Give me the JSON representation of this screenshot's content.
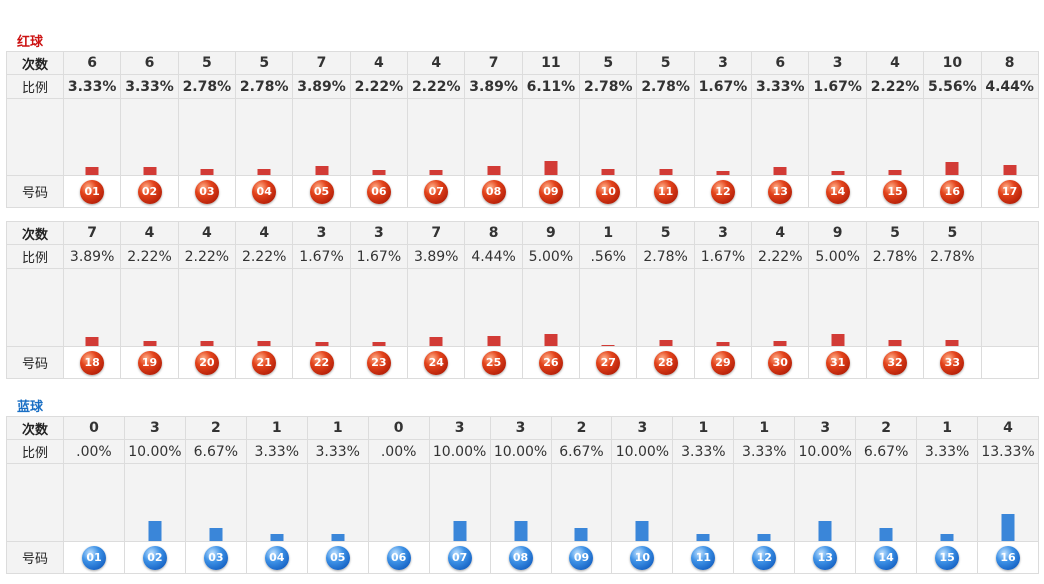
{
  "labels": {
    "count": "次数",
    "ratio": "比例",
    "number": "号码"
  },
  "colors": {
    "red_title": "#cc1111",
    "blue_title": "#1a6fc4",
    "red_bar": "#d23b36",
    "blue_bar": "#3a86d9"
  },
  "chart_data": [
    {
      "type": "bar",
      "title": "红球",
      "categories": [
        "01",
        "02",
        "03",
        "04",
        "05",
        "06",
        "07",
        "08",
        "09",
        "10",
        "11",
        "12",
        "13",
        "14",
        "15",
        "16",
        "17"
      ],
      "counts": [
        6,
        6,
        5,
        5,
        7,
        4,
        4,
        7,
        11,
        5,
        5,
        3,
        6,
        3,
        4,
        10,
        8
      ],
      "ratios": [
        "3.33%",
        "3.33%",
        "2.78%",
        "2.78%",
        "3.89%",
        "2.22%",
        "2.22%",
        "3.89%",
        "6.11%",
        "2.78%",
        "2.78%",
        "1.67%",
        "3.33%",
        "1.67%",
        "2.22%",
        "5.56%",
        "4.44%"
      ],
      "values": [
        3.33,
        3.33,
        2.78,
        2.78,
        3.89,
        2.22,
        2.22,
        3.89,
        6.11,
        2.78,
        2.78,
        1.67,
        3.33,
        1.67,
        2.22,
        5.56,
        4.44
      ],
      "ball_style": "red-ball"
    },
    {
      "type": "bar",
      "categories": [
        "18",
        "19",
        "20",
        "21",
        "22",
        "23",
        "24",
        "25",
        "26",
        "27",
        "28",
        "29",
        "30",
        "31",
        "32",
        "33"
      ],
      "counts": [
        7,
        4,
        4,
        4,
        3,
        3,
        7,
        8,
        9,
        1,
        5,
        3,
        4,
        9,
        5,
        5
      ],
      "ratios": [
        "3.89%",
        "2.22%",
        "2.22%",
        "2.22%",
        "1.67%",
        "1.67%",
        "3.89%",
        "4.44%",
        "5.00%",
        ".56%",
        "2.78%",
        "1.67%",
        "2.22%",
        "5.00%",
        "2.78%",
        "2.78%"
      ],
      "values": [
        3.89,
        2.22,
        2.22,
        2.22,
        1.67,
        1.67,
        3.89,
        4.44,
        5.0,
        0.56,
        2.78,
        1.67,
        2.22,
        5.0,
        2.78,
        2.78
      ],
      "ball_style": "red-ball"
    },
    {
      "type": "bar",
      "title": "蓝球",
      "categories": [
        "01",
        "02",
        "03",
        "04",
        "05",
        "06",
        "07",
        "08",
        "09",
        "10",
        "11",
        "12",
        "13",
        "14",
        "15",
        "16"
      ],
      "counts": [
        0,
        3,
        2,
        1,
        1,
        0,
        3,
        3,
        2,
        3,
        1,
        1,
        3,
        2,
        1,
        4
      ],
      "ratios": [
        ".00%",
        "10.00%",
        "6.67%",
        "3.33%",
        "3.33%",
        ".00%",
        "10.00%",
        "10.00%",
        "6.67%",
        "10.00%",
        "3.33%",
        "3.33%",
        "10.00%",
        "6.67%",
        "3.33%",
        "13.33%"
      ],
      "values": [
        0,
        10,
        6.67,
        3.33,
        3.33,
        0,
        10,
        10,
        6.67,
        10,
        3.33,
        3.33,
        10,
        6.67,
        3.33,
        13.33
      ],
      "ball_style": "blue-ball"
    }
  ]
}
